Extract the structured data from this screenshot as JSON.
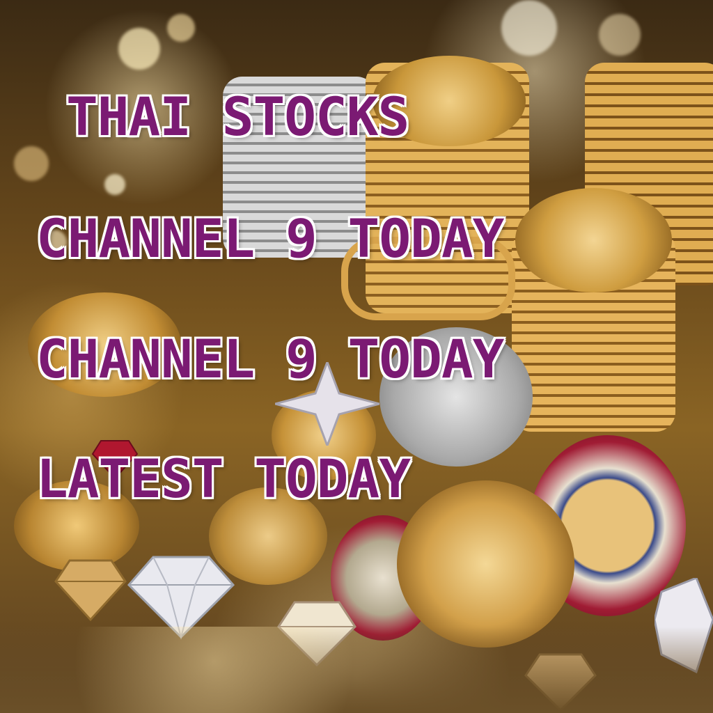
{
  "headlines": {
    "line1": "THAI STOCKS",
    "line2": "CHANNEL 9 TODAY",
    "line3": "CHANNEL 9 TODAY",
    "line4": "LATEST TODAY"
  },
  "colors": {
    "headline_text": "#7b1a73",
    "headline_outline": "#ffffff",
    "gold": "#c9973a",
    "silver": "#bdbdbd",
    "ruby": "#a01c34"
  },
  "scene": {
    "icons": [
      "coin-stack-icon",
      "diamond-icon",
      "ring-icon",
      "sparkle-icon"
    ]
  }
}
